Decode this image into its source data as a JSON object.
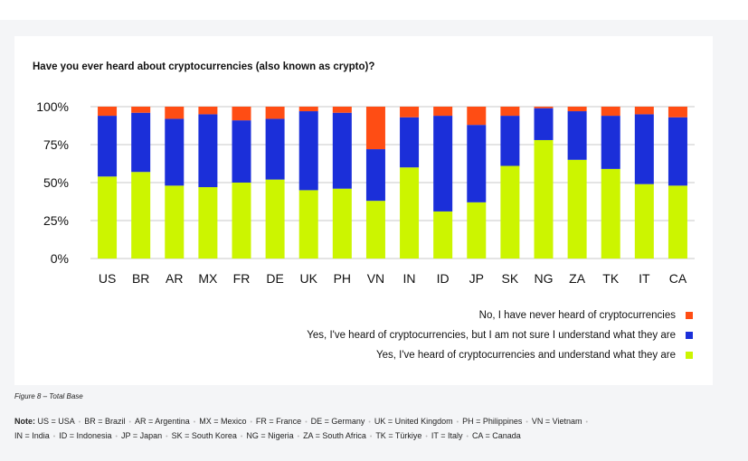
{
  "chart_data": {
    "type": "bar",
    "stacked": true,
    "title": "Have you ever heard about cryptocurrencies (also known as crypto)?",
    "categories": [
      "US",
      "BR",
      "AR",
      "MX",
      "FR",
      "DE",
      "UK",
      "PH",
      "VN",
      "IN",
      "ID",
      "JP",
      "SK",
      "NG",
      "ZA",
      "TK",
      "IT",
      "CA"
    ],
    "y_ticks": [
      "0%",
      "25%",
      "50%",
      "75%",
      "100%"
    ],
    "ylim": [
      0,
      100
    ],
    "series": [
      {
        "name": "Yes, I've heard of cryptocurrencies and understand what they are",
        "color": "#ccf500",
        "values": [
          54,
          57,
          48,
          47,
          50,
          52,
          45,
          46,
          38,
          60,
          31,
          37,
          61,
          78,
          65,
          59,
          49,
          48
        ]
      },
      {
        "name": "Yes, I've heard of cryptocurrencies, but I am not sure I understand what they are",
        "color": "#1b2fd9",
        "values": [
          40,
          39,
          44,
          48,
          41,
          40,
          52,
          50,
          34,
          33,
          63,
          51,
          33,
          21,
          32,
          35,
          46,
          45
        ]
      },
      {
        "name": "No, I have never heard of cryptocurrencies",
        "color": "#ff4d14",
        "values": [
          6,
          4,
          8,
          5,
          9,
          8,
          3,
          4,
          28,
          7,
          6,
          12,
          6,
          1,
          3,
          6,
          5,
          7
        ]
      }
    ],
    "legend_position": "bottom-right",
    "grid": true
  },
  "legend": [
    {
      "label": "No, I have never heard of cryptocurrencies",
      "color": "#ff4d14"
    },
    {
      "label": "Yes, I've heard of cryptocurrencies, but I am not sure I understand what they are",
      "color": "#1b2fd9"
    },
    {
      "label": "Yes, I've heard of cryptocurrencies and understand what they are",
      "color": "#ccf500"
    }
  ],
  "caption": "Figure 8 – Total Base",
  "note": {
    "prefix": "Note:",
    "line1": [
      "US = USA",
      "BR = Brazil",
      "AR = Argentina",
      "MX = Mexico",
      "FR = France",
      "DE = Germany",
      "UK = United Kingdom",
      "PH = Philippines",
      "VN = Vietnam"
    ],
    "line2": [
      "IN = India",
      "ID = Indonesia",
      "JP = Japan",
      "SK = South Korea",
      "NG = Nigeria",
      "ZA = South Africa",
      "TK = Türkiye",
      "IT = Italy",
      "CA = Canada"
    ]
  }
}
